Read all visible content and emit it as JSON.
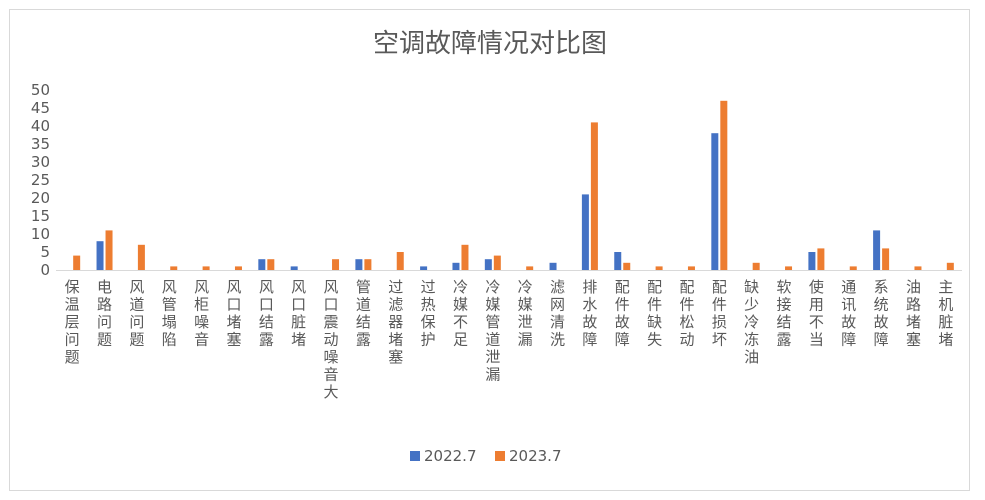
{
  "chart_data": {
    "type": "bar",
    "title": "空调故障情况对比图",
    "xlabel": "",
    "ylabel": "",
    "ylim": [
      0,
      50
    ],
    "yticks": [
      0,
      5,
      10,
      15,
      20,
      25,
      30,
      35,
      40,
      45,
      50
    ],
    "grid": false,
    "legend_position": "bottom",
    "categories": [
      "保温层问题",
      "电路问题",
      "风道问题",
      "风管塌陷",
      "风柜噪音",
      "风口堵塞",
      "风口结露",
      "风口脏堵",
      "风口震动噪音大",
      "管道结露",
      "过滤器堵塞",
      "过热保护",
      "冷媒不足",
      "冷媒管道泄漏",
      "冷媒泄漏",
      "滤网清洗",
      "排水故障",
      "配件故障",
      "配件缺失",
      "配件松动",
      "配件损坏",
      "缺少冷冻油",
      "软接结露",
      "使用不当",
      "通讯故障",
      "系统故障",
      "油路堵塞",
      "主机脏堵"
    ],
    "series": [
      {
        "name": "2022.7",
        "color": "#4472c4",
        "values": [
          0,
          8,
          0,
          0,
          0,
          0,
          3,
          1,
          0,
          3,
          0,
          1,
          2,
          3,
          0,
          2,
          21,
          5,
          0,
          0,
          38,
          0,
          0,
          5,
          0,
          11,
          0,
          0
        ]
      },
      {
        "name": "2023.7",
        "color": "#ed7d31",
        "values": [
          4,
          11,
          7,
          1,
          1,
          1,
          3,
          0,
          3,
          3,
          5,
          0,
          7,
          4,
          1,
          0,
          41,
          2,
          1,
          1,
          47,
          2,
          1,
          6,
          1,
          6,
          1,
          2
        ]
      }
    ]
  }
}
